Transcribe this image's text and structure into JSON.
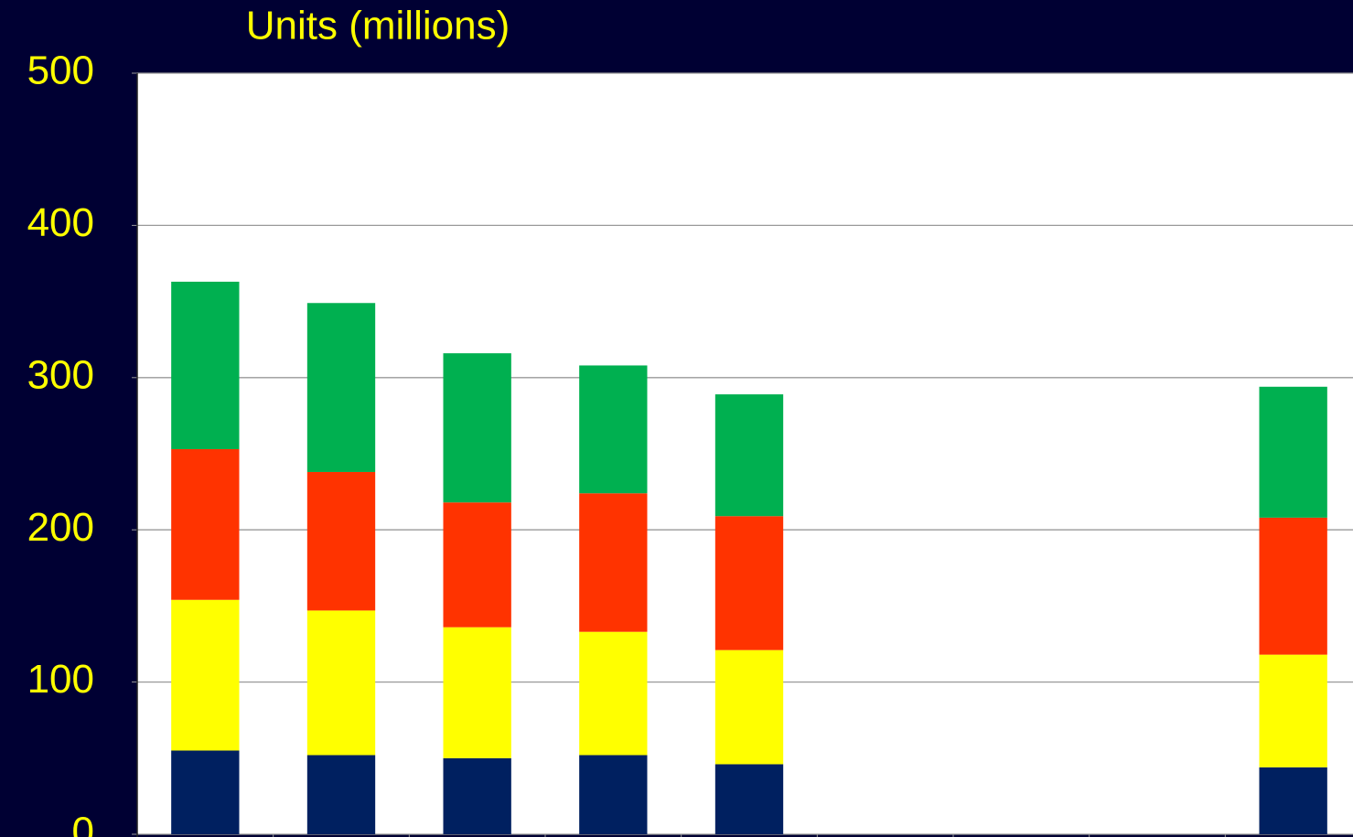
{
  "chart_data": {
    "type": "stacked-bar",
    "title": "Units (millions)",
    "categories": [
      null,
      null,
      null,
      null,
      null,
      null,
      null,
      null,
      null
    ],
    "series": [
      {
        "color": "#002060",
        "values": [
          55,
          52,
          50,
          52,
          46,
          null,
          null,
          null,
          44
        ]
      },
      {
        "color": "#ffff00",
        "values": [
          99,
          95,
          86,
          81,
          75,
          null,
          null,
          null,
          74
        ]
      },
      {
        "color": "#ff3300",
        "values": [
          99,
          91,
          82,
          91,
          88,
          null,
          null,
          null,
          90
        ]
      },
      {
        "color": "#00b050",
        "values": [
          110,
          111,
          98,
          84,
          80,
          null,
          null,
          null,
          86
        ]
      }
    ],
    "ylim": [
      0,
      500
    ],
    "yticks": [
      0,
      100,
      200,
      300,
      400,
      500
    ],
    "grid": true
  }
}
